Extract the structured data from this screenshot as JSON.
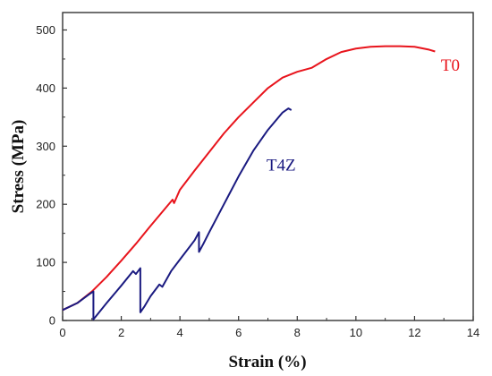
{
  "chart_data": {
    "type": "line",
    "xlabel": "Strain (%)",
    "ylabel": "Stress (MPa)",
    "xlim": [
      0,
      14
    ],
    "ylim": [
      0,
      530
    ],
    "x_ticks": [
      0,
      2,
      4,
      6,
      8,
      10,
      12,
      14
    ],
    "y_ticks": [
      0,
      100,
      200,
      300,
      400,
      500
    ],
    "grid": false,
    "legend": "none",
    "series": [
      {
        "name": "T0",
        "color": "#e8141c",
        "points": [
          [
            0,
            18
          ],
          [
            0.5,
            30
          ],
          [
            1.0,
            50
          ],
          [
            1.5,
            75
          ],
          [
            2.0,
            103
          ],
          [
            2.5,
            132
          ],
          [
            3.0,
            163
          ],
          [
            3.5,
            193
          ],
          [
            3.75,
            208
          ],
          [
            3.8,
            202
          ],
          [
            4.0,
            225
          ],
          [
            4.5,
            258
          ],
          [
            5.0,
            290
          ],
          [
            5.5,
            322
          ],
          [
            6.0,
            350
          ],
          [
            6.5,
            375
          ],
          [
            7.0,
            400
          ],
          [
            7.5,
            418
          ],
          [
            8.0,
            428
          ],
          [
            8.5,
            435
          ],
          [
            9.0,
            450
          ],
          [
            9.5,
            462
          ],
          [
            10.0,
            468
          ],
          [
            10.5,
            471
          ],
          [
            11.0,
            472
          ],
          [
            11.5,
            472
          ],
          [
            12.0,
            471
          ],
          [
            12.5,
            466
          ],
          [
            12.7,
            463
          ]
        ],
        "label_position": [
          12.9,
          430
        ]
      },
      {
        "name": "T4Z",
        "color": "#1a1a80",
        "points": [
          [
            0,
            18
          ],
          [
            0.5,
            30
          ],
          [
            0.9,
            45
          ],
          [
            1.05,
            50
          ],
          [
            1.05,
            2
          ],
          [
            1.1,
            5
          ],
          [
            1.5,
            30
          ],
          [
            2.0,
            60
          ],
          [
            2.4,
            85
          ],
          [
            2.5,
            80
          ],
          [
            2.65,
            90
          ],
          [
            2.65,
            14
          ],
          [
            2.8,
            25
          ],
          [
            3.0,
            42
          ],
          [
            3.3,
            62
          ],
          [
            3.4,
            58
          ],
          [
            3.7,
            85
          ],
          [
            4.0,
            105
          ],
          [
            4.5,
            138
          ],
          [
            4.65,
            152
          ],
          [
            4.65,
            118
          ],
          [
            4.8,
            132
          ],
          [
            5.0,
            152
          ],
          [
            5.5,
            200
          ],
          [
            6.0,
            248
          ],
          [
            6.5,
            292
          ],
          [
            7.0,
            328
          ],
          [
            7.5,
            358
          ],
          [
            7.7,
            365
          ],
          [
            7.8,
            362
          ]
        ],
        "label_position": [
          6.95,
          258
        ]
      }
    ]
  }
}
